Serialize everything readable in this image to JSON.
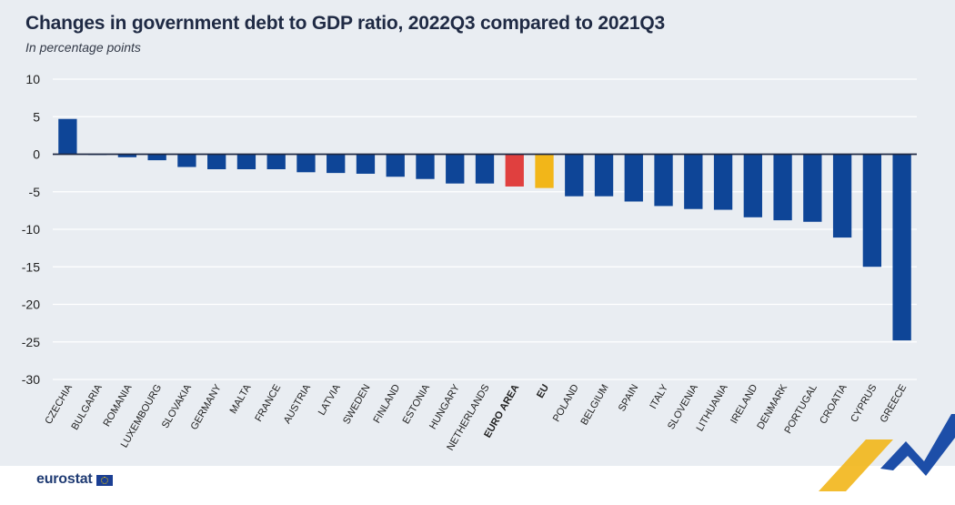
{
  "header": {
    "title": "Changes in government debt to GDP ratio, 2022Q3 compared to 2021Q3",
    "subtitle": "In percentage points"
  },
  "footer": {
    "logo_text": "eurostat"
  },
  "colors": {
    "panel_background": "#e9edf2",
    "country_bar": "#0e4597",
    "euro_area_bar": "#e0403f",
    "eu_bar": "#f2b619",
    "axis_line": "#1f2a44",
    "gridline": "#ffffff",
    "decor_yellow": "#f2b619",
    "decor_blue": "#1d4ea8"
  },
  "chart_data": {
    "type": "bar",
    "title": "Changes in government debt to GDP ratio, 2022Q3 compared to 2021Q3",
    "subtitle": "In percentage points",
    "ylim": [
      -30,
      10
    ],
    "yticks": [
      10,
      5,
      0,
      -5,
      -10,
      -15,
      -20,
      -25,
      -30
    ],
    "grid": true,
    "legend": "none",
    "categories": [
      "CZECHIA",
      "BULGARIA",
      "ROMANIA",
      "LUXEMBOURG",
      "SLOVAKIA",
      "GERMANY",
      "MALTA",
      "FRANCE",
      "AUSTRIA",
      "LATVIA",
      "SWEDEN",
      "FINLAND",
      "ESTONIA",
      "HUNGARY",
      "NETHERLANDS",
      "EURO AREA",
      "EU",
      "POLAND",
      "BELGIUM",
      "SPAIN",
      "ITALY",
      "SLOVENIA",
      "LITHUANIA",
      "IRELAND",
      "DENMARK",
      "PORTUGAL",
      "CROATIA",
      "CYPRUS",
      "GREECE"
    ],
    "values": [
      4.7,
      -0.1,
      -0.4,
      -0.8,
      -1.7,
      -2.0,
      -2.0,
      -2.0,
      -2.4,
      -2.5,
      -2.6,
      -3.0,
      -3.3,
      -3.9,
      -3.9,
      -4.3,
      -4.5,
      -5.6,
      -5.6,
      -6.3,
      -6.9,
      -7.3,
      -7.4,
      -8.4,
      -8.8,
      -9.0,
      -11.1,
      -15.0,
      -24.8
    ],
    "highlighted": [
      "EURO AREA",
      "EU"
    ]
  }
}
